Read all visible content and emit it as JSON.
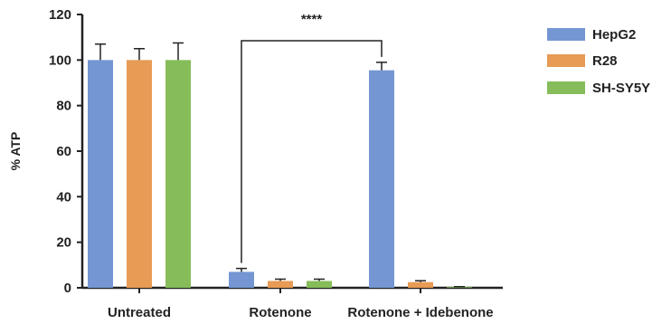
{
  "chart_data": {
    "type": "bar",
    "ylabel": "% ATP",
    "ylim": [
      0,
      120
    ],
    "yticks": [
      0,
      20,
      40,
      60,
      80,
      100,
      120
    ],
    "categories": [
      "Untreated",
      "Rotenone",
      "Rotenone + Idebenone"
    ],
    "series": [
      {
        "name": "HepG2",
        "color": "#7496d2",
        "values": [
          100,
          7,
          95.5
        ],
        "errors": [
          7,
          1.5,
          3.5
        ]
      },
      {
        "name": "R28",
        "color": "#e79b55",
        "values": [
          100,
          3,
          2.5
        ],
        "errors": [
          5,
          0.8,
          0.6
        ]
      },
      {
        "name": "SH-SY5Y",
        "color": "#86bd5a",
        "values": [
          100,
          3,
          0.3
        ],
        "errors": [
          7.5,
          0.8,
          0.2
        ]
      }
    ],
    "annotation": {
      "text": "****",
      "from": {
        "category": 1,
        "series": 0
      },
      "to": {
        "category": 2,
        "series": 0
      }
    },
    "legend_position": "top-right",
    "grid": false
  }
}
